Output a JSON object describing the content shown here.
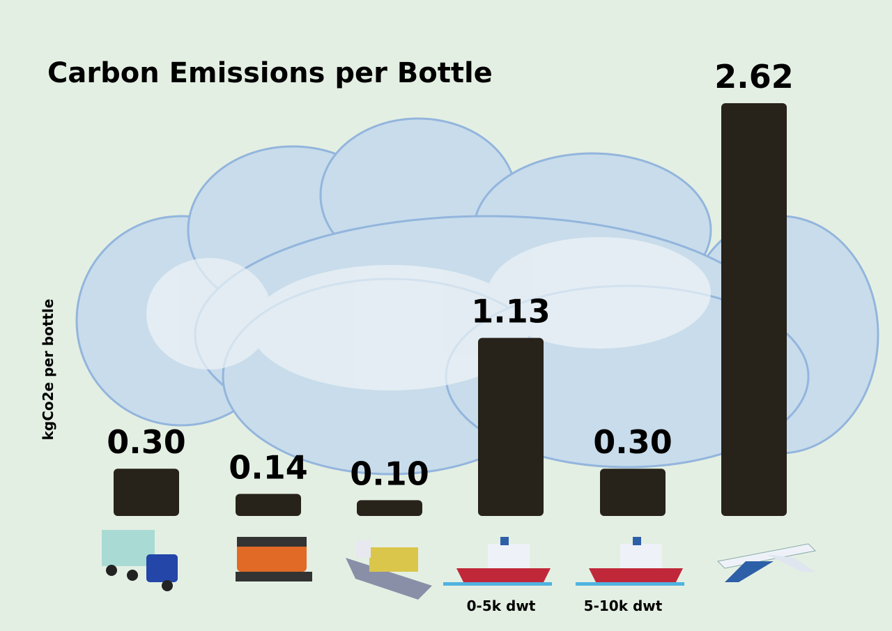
{
  "chart_data": {
    "type": "bar",
    "title": "Carbon Emissions per Bottle",
    "y_label": "kgCo2e per bottle",
    "categories": [
      null,
      null,
      null,
      "0-5k dwt",
      "5-10k dwt",
      null
    ],
    "values": [
      0.3,
      0.14,
      0.1,
      1.13,
      0.3,
      2.62
    ],
    "value_labels": [
      "0.30",
      "0.14",
      "0.10",
      "1.13",
      "0.30",
      "2.62"
    ],
    "color": "#27221a"
  }
}
